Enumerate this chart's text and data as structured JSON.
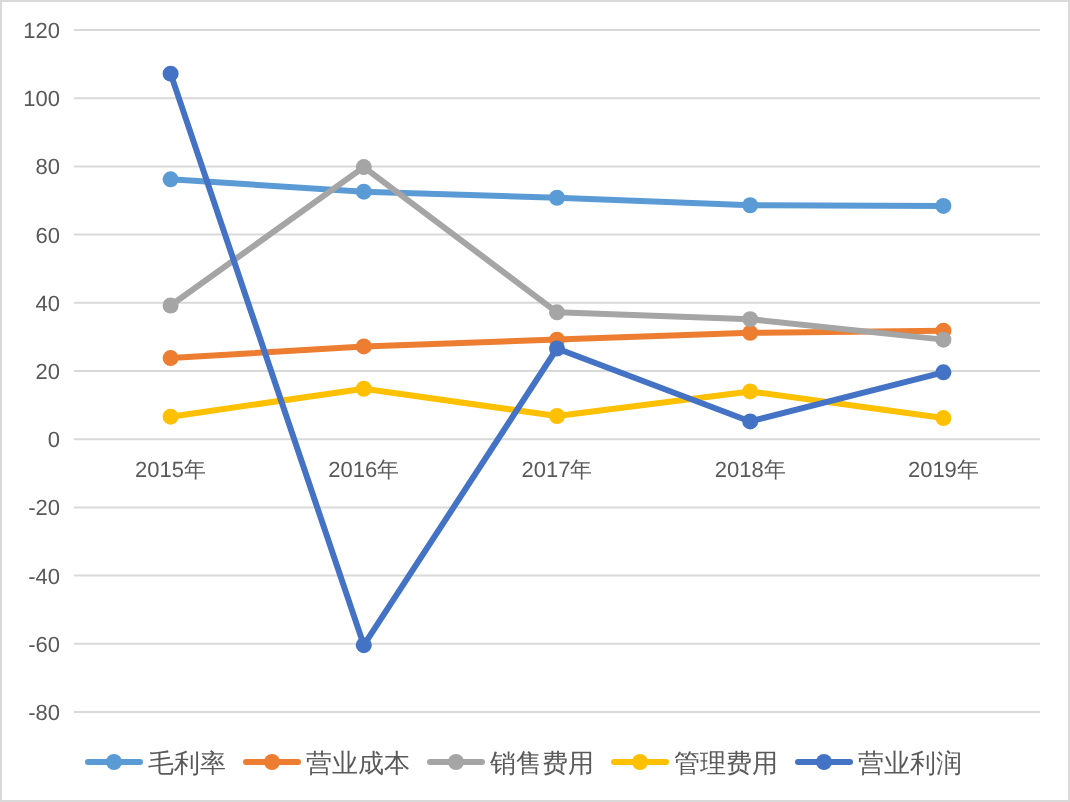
{
  "chart_data": {
    "type": "line",
    "categories": [
      "2015年",
      "2016年",
      "2017年",
      "2018年",
      "2019年"
    ],
    "series": [
      {
        "name": "毛利率",
        "color": "#5b9bd5",
        "values": [
          76.2,
          72.6,
          70.8,
          68.6,
          68.4
        ]
      },
      {
        "name": "营业成本",
        "color": "#ed7d31",
        "values": [
          23.8,
          27.2,
          29.2,
          31.2,
          31.8
        ]
      },
      {
        "name": "销售费用",
        "color": "#a5a5a5",
        "values": [
          39.2,
          79.8,
          37.2,
          35.2,
          29.2
        ]
      },
      {
        "name": "管理费用",
        "color": "#ffc000",
        "values": [
          6.6,
          14.8,
          6.8,
          14.0,
          6.2
        ]
      },
      {
        "name": "营业利润",
        "color": "#4472c4",
        "values": [
          107.2,
          -60.4,
          26.6,
          5.2,
          19.6
        ]
      }
    ],
    "ylim": [
      -80,
      120
    ],
    "yticks": [
      -80,
      -60,
      -40,
      -20,
      0,
      20,
      40,
      60,
      80,
      100,
      120
    ],
    "grid": "y",
    "legend": "bottom",
    "marker": "circle",
    "line_style": "solid"
  }
}
